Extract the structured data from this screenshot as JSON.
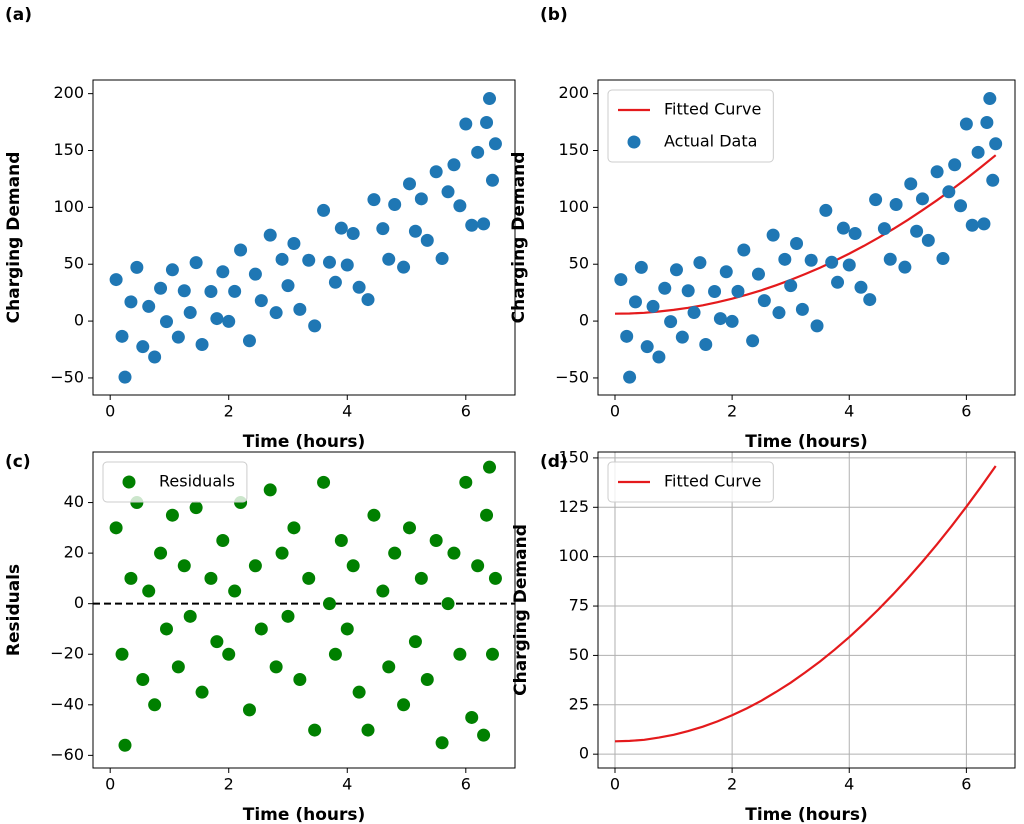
{
  "chart_data": [
    {
      "type": "scatter",
      "panel_label": "(a)",
      "x_label": "Time (hours)",
      "y_label": "Charging Demand",
      "xlim": [
        -0.29,
        6.83
      ],
      "ylim": [
        -65,
        212
      ],
      "xticks": [
        0,
        2,
        4,
        6
      ],
      "yticks": [
        {
          "value": -50,
          "label": "−50"
        },
        0,
        50,
        100,
        150,
        200
      ],
      "grid": false,
      "series": [
        {
          "type": "scatter",
          "color": "#1f77b4",
          "x": [
            0.1,
            0.2,
            0.25,
            0.35,
            0.45,
            0.55,
            0.65,
            0.75,
            0.85,
            0.95,
            1.05,
            1.15,
            1.25,
            1.35,
            1.45,
            1.55,
            1.7,
            1.8,
            1.9,
            2.0,
            2.1,
            2.2,
            2.35,
            2.45,
            2.55,
            2.7,
            2.8,
            2.9,
            3.0,
            3.1,
            3.2,
            3.35,
            3.45,
            3.6,
            3.7,
            3.8,
            3.9,
            4.0,
            4.1,
            4.2,
            4.35,
            4.45,
            4.6,
            4.7,
            4.8,
            4.95,
            5.05,
            5.15,
            5.25,
            5.35,
            5.5,
            5.6,
            5.7,
            5.8,
            5.9,
            6.0,
            6.1,
            6.2,
            6.3,
            6.35,
            6.4,
            6.45,
            6.5
          ],
          "values": [
            36.5,
            -13.4,
            -49.3,
            16.9,
            47.2,
            -22.5,
            12.9,
            -31.6,
            28.9,
            -0.5,
            45.1,
            -14.1,
            26.7,
            7.5,
            51.4,
            -20.6,
            26.0,
            2.2,
            43.4,
            -0.3,
            26.1,
            62.5,
            -17.3,
            41.3,
            18.0,
            75.6,
            7.4,
            54.3,
            31.2,
            68.2,
            10.3,
            53.5,
            -4.2,
            97.3,
            51.7,
            34.1,
            81.7,
            49.3,
            77.0,
            29.7,
            18.9,
            106.8,
            81.3,
            54.4,
            102.5,
            47.4,
            120.7,
            79.0,
            107.5,
            71.0,
            131.3,
            55.0,
            113.7,
            137.5,
            101.4,
            173.3,
            84.3,
            148.4,
            85.5,
            174.6,
            195.7,
            123.8,
            155.9
          ]
        }
      ]
    },
    {
      "type": "scatter",
      "panel_label": "(b)",
      "x_label": "Time (hours)",
      "y_label": "Charging Demand",
      "xlim": [
        -0.29,
        6.83
      ],
      "ylim": [
        -65,
        212
      ],
      "xticks": [
        0,
        2,
        4,
        6
      ],
      "yticks": [
        {
          "value": -50,
          "label": "−50"
        },
        0,
        50,
        100,
        150,
        200
      ],
      "grid": false,
      "legend": "upper left",
      "series": [
        {
          "type": "line",
          "name": "Fitted Curve",
          "color": "#e41a1c",
          "x": [
            0,
            0.25,
            0.5,
            0.75,
            1,
            1.25,
            1.5,
            1.75,
            2,
            2.25,
            2.5,
            2.75,
            3,
            3.25,
            3.5,
            3.75,
            4,
            4.25,
            4.5,
            4.75,
            5,
            5.25,
            5.5,
            5.75,
            6,
            6.25,
            6.5
          ],
          "values": [
            6.5,
            6.7,
            7.3,
            8.4,
            9.8,
            11.7,
            13.9,
            16.6,
            19.7,
            23.2,
            27.1,
            31.5,
            36.2,
            41.4,
            46.9,
            52.9,
            59.3,
            66.1,
            73.3,
            81.0,
            89.0,
            97.5,
            106.3,
            115.6,
            125.3,
            135.4,
            145.9
          ]
        },
        {
          "type": "scatter",
          "name": "Actual Data",
          "color": "#1f77b4",
          "x": [
            0.1,
            0.2,
            0.25,
            0.35,
            0.45,
            0.55,
            0.65,
            0.75,
            0.85,
            0.95,
            1.05,
            1.15,
            1.25,
            1.35,
            1.45,
            1.55,
            1.7,
            1.8,
            1.9,
            2.0,
            2.1,
            2.2,
            2.35,
            2.45,
            2.55,
            2.7,
            2.8,
            2.9,
            3.0,
            3.1,
            3.2,
            3.35,
            3.45,
            3.6,
            3.7,
            3.8,
            3.9,
            4.0,
            4.1,
            4.2,
            4.35,
            4.45,
            4.6,
            4.7,
            4.8,
            4.95,
            5.05,
            5.15,
            5.25,
            5.35,
            5.5,
            5.6,
            5.7,
            5.8,
            5.9,
            6.0,
            6.1,
            6.2,
            6.3,
            6.35,
            6.4,
            6.45,
            6.5
          ],
          "values": [
            36.5,
            -13.4,
            -49.3,
            16.9,
            47.2,
            -22.5,
            12.9,
            -31.6,
            28.9,
            -0.5,
            45.1,
            -14.1,
            26.7,
            7.5,
            51.4,
            -20.6,
            26.0,
            2.2,
            43.4,
            -0.3,
            26.1,
            62.5,
            -17.3,
            41.3,
            18.0,
            75.6,
            7.4,
            54.3,
            31.2,
            68.2,
            10.3,
            53.5,
            -4.2,
            97.3,
            51.7,
            34.1,
            81.7,
            49.3,
            77.0,
            29.7,
            18.9,
            106.8,
            81.3,
            54.4,
            102.5,
            47.4,
            120.7,
            79.0,
            107.5,
            71.0,
            131.3,
            55.0,
            113.7,
            137.5,
            101.4,
            173.3,
            84.3,
            148.4,
            85.5,
            174.6,
            195.7,
            123.8,
            155.9
          ]
        }
      ]
    },
    {
      "type": "scatter",
      "panel_label": "(c)",
      "x_label": "Time (hours)",
      "y_label": "Residuals",
      "xlim": [
        -0.29,
        6.83
      ],
      "ylim": [
        -65,
        60
      ],
      "xticks": [
        0,
        2,
        4,
        6
      ],
      "yticks": [
        {
          "value": -60,
          "label": "−60"
        },
        {
          "value": -40,
          "label": "−40"
        },
        {
          "value": -20,
          "label": "−20"
        },
        0,
        20,
        40
      ],
      "grid": false,
      "legend": "upper center",
      "reference_line": 0,
      "series": [
        {
          "type": "scatter",
          "name": "Residuals",
          "color": "#008000",
          "x": [
            0.1,
            0.2,
            0.25,
            0.35,
            0.45,
            0.55,
            0.65,
            0.75,
            0.85,
            0.95,
            1.05,
            1.15,
            1.25,
            1.35,
            1.45,
            1.55,
            1.7,
            1.8,
            1.9,
            2.0,
            2.1,
            2.2,
            2.35,
            2.45,
            2.55,
            2.7,
            2.8,
            2.9,
            3.0,
            3.1,
            3.2,
            3.35,
            3.45,
            3.6,
            3.7,
            3.8,
            3.9,
            4.0,
            4.1,
            4.2,
            4.35,
            4.45,
            4.6,
            4.7,
            4.8,
            4.95,
            5.05,
            5.15,
            5.25,
            5.35,
            5.5,
            5.6,
            5.7,
            5.8,
            5.9,
            6.0,
            6.1,
            6.2,
            6.3,
            6.35,
            6.4,
            6.45,
            6.5
          ],
          "values": [
            30,
            -20,
            -56,
            10,
            40,
            -30,
            5,
            -40,
            20,
            -10,
            35,
            -25,
            15,
            -5,
            38,
            -35,
            10,
            -15,
            25,
            -20,
            5,
            40,
            -42,
            15,
            -10,
            45,
            -25,
            20,
            -5,
            30,
            -30,
            10,
            -50,
            48,
            0,
            -20,
            25,
            -10,
            15,
            -35,
            -50,
            35,
            5,
            -25,
            20,
            -40,
            30,
            -15,
            10,
            -30,
            25,
            -55,
            0,
            20,
            -20,
            48,
            -45,
            15,
            -52,
            35,
            54,
            -20,
            10
          ]
        }
      ]
    },
    {
      "type": "line",
      "panel_label": "(d)",
      "x_label": "Time (hours)",
      "y_label": "Charging Demand",
      "xlim": [
        -0.29,
        6.83
      ],
      "ylim": [
        -7,
        153
      ],
      "xticks": [
        0,
        2,
        4,
        6
      ],
      "yticks": [
        0,
        25,
        50,
        75,
        100,
        125,
        150
      ],
      "grid": true,
      "legend": "upper left",
      "series": [
        {
          "type": "line",
          "name": "Fitted Curve",
          "color": "#e41a1c",
          "x": [
            0,
            0.25,
            0.5,
            0.75,
            1,
            1.25,
            1.5,
            1.75,
            2,
            2.25,
            2.5,
            2.75,
            3,
            3.25,
            3.5,
            3.75,
            4,
            4.25,
            4.5,
            4.75,
            5,
            5.25,
            5.5,
            5.75,
            6,
            6.25,
            6.5
          ],
          "values": [
            6.5,
            6.7,
            7.3,
            8.4,
            9.8,
            11.7,
            13.9,
            16.6,
            19.7,
            23.2,
            27.1,
            31.5,
            36.2,
            41.4,
            46.9,
            52.9,
            59.3,
            66.1,
            73.3,
            81.0,
            89.0,
            97.5,
            106.3,
            115.6,
            125.3,
            135.4,
            145.9
          ]
        }
      ]
    }
  ]
}
